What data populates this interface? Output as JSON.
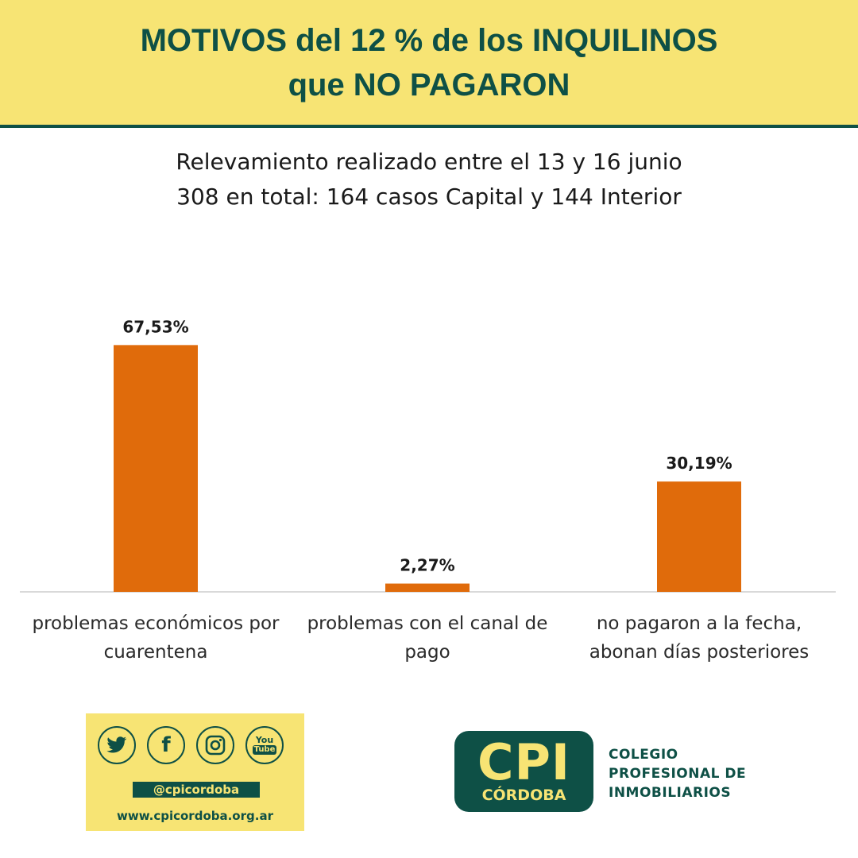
{
  "header": {
    "title_line1": "MOTIVOS del 12 % de los INQUILINOS",
    "title_line2": "que NO PAGARON"
  },
  "subtitle": {
    "line1": "Relevamiento realizado entre el 13 y 16 junio",
    "line2": "308 en total: 164 casos Capital y 144 Interior"
  },
  "chart_data": {
    "type": "bar",
    "title": "MOTIVOS del 12 % de los INQUILINOS que NO PAGARON",
    "categories": [
      [
        "problemas económicos por",
        "cuarentena"
      ],
      [
        "problemas con el canal de",
        "pago"
      ],
      [
        "no pagaron a la fecha,",
        "abonan días posteriores"
      ]
    ],
    "values": [
      67.53,
      2.27,
      30.19
    ],
    "value_labels": [
      "67,53%",
      "2,27%",
      "30,19%"
    ],
    "ylim": [
      0,
      75
    ],
    "xlabel": "",
    "ylabel": "",
    "grid": false,
    "bar_color": "#e06b0b"
  },
  "social": {
    "icons": [
      "twitter-icon",
      "facebook-icon",
      "instagram-icon",
      "youtube-icon"
    ],
    "youtube_text_top": "You",
    "youtube_text_bottom": "Tube",
    "facebook_glyph": "f",
    "handle": "@cpicordoba",
    "website": "www.cpicordoba.org.ar"
  },
  "logo": {
    "main": "CPI",
    "sub": "CÓRDOBA",
    "org_line1": "COLEGIO",
    "org_line2": "PROFESIONAL DE",
    "org_line3": "INMOBILIARIOS"
  },
  "colors": {
    "header_bg": "#f7e474",
    "brand_green": "#0e5046",
    "bar": "#e06b0b"
  }
}
